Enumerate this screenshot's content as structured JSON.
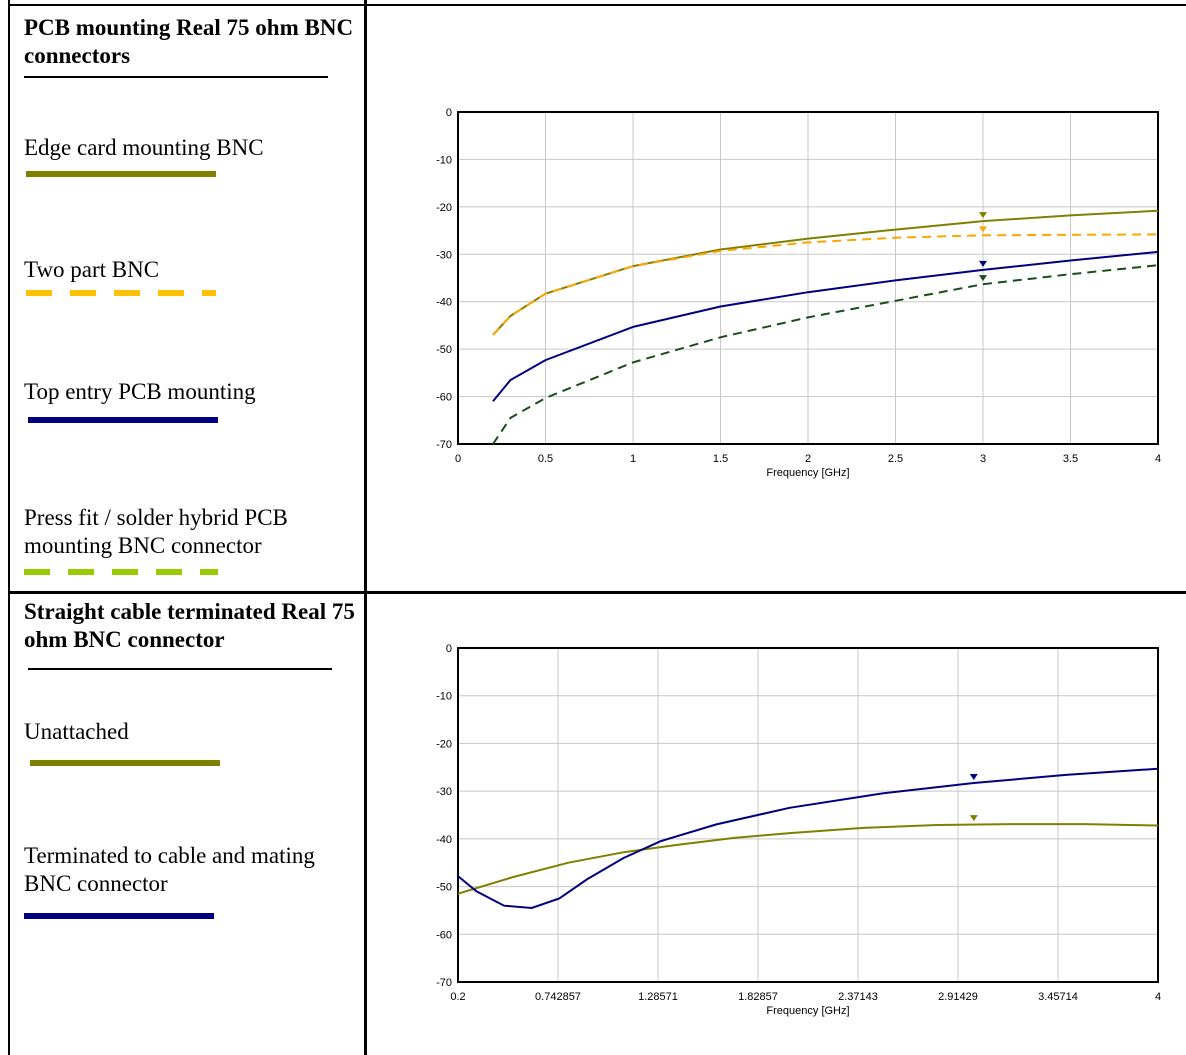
{
  "sections": [
    {
      "heading": "PCB mounting Real 75 ohm BNC connectors",
      "legend": [
        {
          "label": "Edge card mounting BNC",
          "color": "#808000",
          "style": "solid"
        },
        {
          "label": "Two part BNC",
          "color": "#ffc000",
          "style": "dashed"
        },
        {
          "label": "Top entry PCB mounting",
          "color": "#000080",
          "style": "solid"
        },
        {
          "label": "Press fit / solder hybrid PCB mounting BNC connector",
          "color": "#99cc00",
          "style": "dashed"
        }
      ]
    },
    {
      "heading": "Straight cable terminated Real 75 ohm BNC connector",
      "legend": [
        {
          "label": "Unattached",
          "color": "#808000",
          "style": "solid"
        },
        {
          "label": "Terminated to cable and mating BNC connector",
          "color": "#000080",
          "style": "solid"
        }
      ]
    }
  ],
  "chart_data": [
    {
      "type": "line",
      "xlabel": "Frequency [GHz]",
      "ylabel": "",
      "xlim": [
        0,
        4
      ],
      "ylim": [
        -70,
        0
      ],
      "xticks": [
        "0",
        "0.5",
        "1",
        "1.5",
        "2",
        "2.5",
        "3",
        "3.5",
        "4"
      ],
      "yticks": [
        "0",
        "-10",
        "-20",
        "-30",
        "-40",
        "-50",
        "-60",
        "-70"
      ],
      "grid": true,
      "x": [
        0.2,
        0.3,
        0.5,
        1,
        1.5,
        2,
        2.5,
        3,
        3.5,
        4
      ],
      "series": [
        {
          "color": "#808000",
          "style": "solid",
          "values": [
            -47,
            -43,
            -38.3,
            -32.5,
            -29,
            -26.7,
            -24.8,
            -23,
            -21.8,
            -20.8
          ],
          "marker_x": 3,
          "marker_y": -23
        },
        {
          "color": "#ffa500",
          "style": "dashed",
          "values": [
            -47,
            -43,
            -38.3,
            -32.5,
            -29.3,
            -27.5,
            -26.5,
            -26,
            -25.9,
            -25.8
          ],
          "marker_x": 3,
          "marker_y": -26
        },
        {
          "color": "#000080",
          "style": "solid",
          "values": [
            -61,
            -56.5,
            -52.3,
            -45.3,
            -41,
            -38,
            -35.5,
            -33.3,
            -31.3,
            -29.5
          ],
          "marker_x": 3,
          "marker_y": -33.3
        },
        {
          "color": "#1a4d1a",
          "style": "dashed",
          "values": [
            -70,
            -64.5,
            -60.3,
            -52.8,
            -47.5,
            -43.3,
            -39.8,
            -36.3,
            -34.2,
            -32.3
          ],
          "marker_x": 3,
          "marker_y": -36.3
        }
      ]
    },
    {
      "type": "line",
      "xlabel": "Frequency [GHz]",
      "ylabel": "",
      "xlim": [
        0.2,
        4
      ],
      "ylim": [
        -70,
        0
      ],
      "xticks": [
        "0.2",
        "0.742857",
        "1.28571",
        "1.82857",
        "2.37143",
        "2.91429",
        "3.45714",
        "4"
      ],
      "yticks": [
        "0",
        "-10",
        "-20",
        "-30",
        "-40",
        "-50",
        "-60",
        "-70"
      ],
      "grid": true,
      "series": [
        {
          "color": "#808000",
          "style": "solid",
          "x": [
            0.2,
            0.5,
            0.8,
            1.1,
            1.4,
            1.7,
            2.0,
            2.4,
            2.8,
            3.2,
            3.6,
            4.0
          ],
          "values": [
            -51.5,
            -48,
            -45,
            -42.8,
            -41.2,
            -39.8,
            -38.8,
            -37.7,
            -37.1,
            -36.9,
            -36.9,
            -37.2
          ],
          "marker_x": 3.0,
          "marker_y": -36.9
        },
        {
          "color": "#000080",
          "style": "solid",
          "x": [
            0.2,
            0.3,
            0.45,
            0.6,
            0.75,
            0.9,
            1.1,
            1.3,
            1.6,
            2.0,
            2.5,
            3.0,
            3.5,
            4.0
          ],
          "values": [
            -47.8,
            -51,
            -54,
            -54.5,
            -52.5,
            -48.5,
            -44,
            -40.5,
            -37,
            -33.5,
            -30.5,
            -28.3,
            -26.6,
            -25.3
          ],
          "marker_x": 3.0,
          "marker_y": -28.3
        }
      ]
    }
  ]
}
